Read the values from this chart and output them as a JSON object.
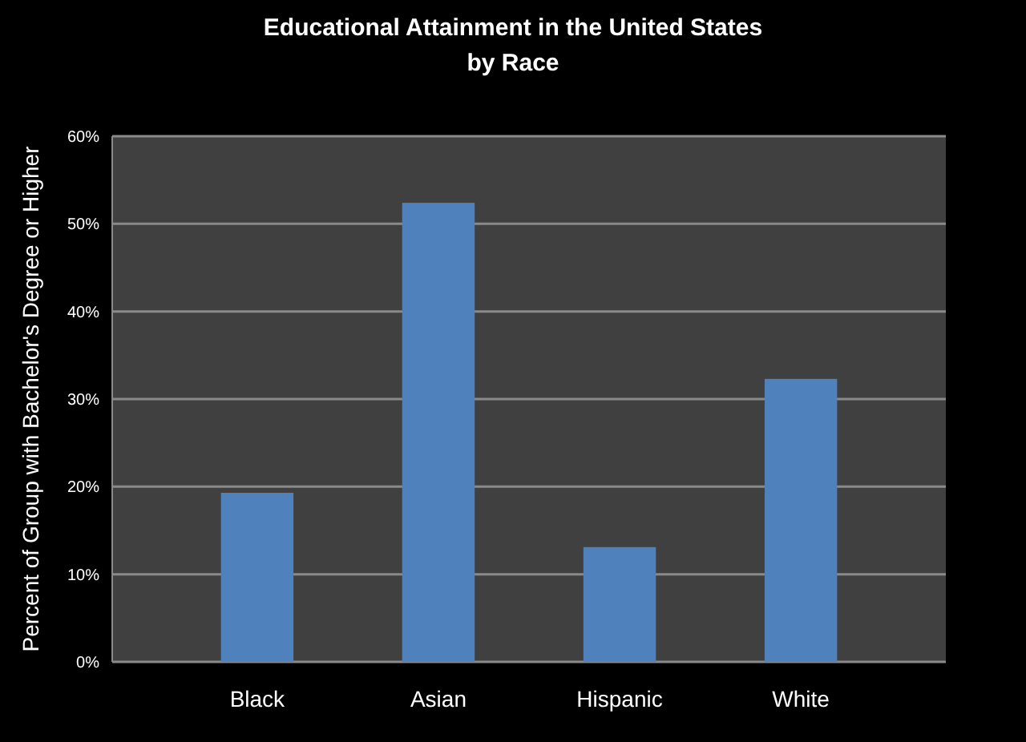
{
  "chart_data": {
    "type": "bar",
    "title": "Educational Attainment in the United States\nby Race",
    "ylabel": "Percent of Group with Bachelor's Degree or Higher",
    "categories": [
      "Black",
      "Asian",
      "Hispanic",
      "White"
    ],
    "values": [
      19.3,
      52.4,
      13.1,
      32.3
    ],
    "color": "#4f81bd",
    "ylim": [
      0,
      60
    ],
    "yticks": [
      {
        "value": 0,
        "label": "0%"
      },
      {
        "value": 10,
        "label": "10%"
      },
      {
        "value": 20,
        "label": "20%"
      },
      {
        "value": 30,
        "label": "30%"
      },
      {
        "value": 40,
        "label": "40%"
      },
      {
        "value": 50,
        "label": "50%"
      },
      {
        "value": 60,
        "label": "60%"
      }
    ],
    "grid": "y"
  }
}
